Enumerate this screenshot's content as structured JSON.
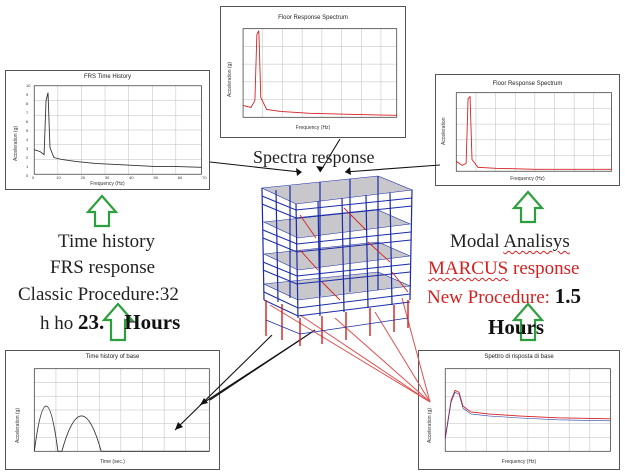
{
  "panels": {
    "top_center": {
      "title": "Floor Response Spectrum",
      "ylabel": "Acceleration (g)",
      "xlabel": "Frequency (Hz)"
    },
    "top_left": {
      "title": "FRS Time History",
      "ylabel": "Acceleration (g)",
      "xlabel": "Frequency (Hz)",
      "xticks": [
        "0",
        "10",
        "20",
        "30",
        "40",
        "50",
        "60",
        "70"
      ],
      "yticks": [
        "0",
        "1",
        "2",
        "3",
        "4",
        "5",
        "6",
        "7",
        "8",
        "9",
        "10"
      ]
    },
    "top_right": {
      "title": "Floor Response Spectrum",
      "ylabel": "Acceleration",
      "xlabel": "Frequency (Hz)"
    },
    "bottom_left": {
      "title": "Time history of base",
      "ylabel": "Acceleration (g)",
      "xlabel": "Time (sec.)"
    },
    "bottom_right": {
      "title": "Spettro di risposta di base",
      "ylabel": "Acceleration (g)",
      "xlabel": "Frequency (Hz)"
    }
  },
  "labels": {
    "spectra_response": "Spectra response",
    "left": {
      "line1": "Time history",
      "line2": "FRS response",
      "line3": "Classic Procedure:32",
      "line4_prefix": "h ho ",
      "line4_bold_a": "23.",
      "line4_bold_b": "Hours"
    },
    "right": {
      "line1_a": "Modal ",
      "line1_b": "Analisys",
      "line2_a": "MARCUS",
      "line2_b": " response",
      "line3_a": "New Procedure: ",
      "line3_b": "1.5",
      "line4": "Hours"
    }
  },
  "colors": {
    "arrow_green": "#2e9e3e",
    "text_red": "#d42020",
    "frame_blue": "#1a2aa8",
    "frame_red": "#d42020",
    "connector_red": "#e05050",
    "connector_black": "#111111"
  },
  "icons": {
    "up_arrow": "hollow-up-arrow-icon",
    "building": "building-frame-model-icon"
  }
}
